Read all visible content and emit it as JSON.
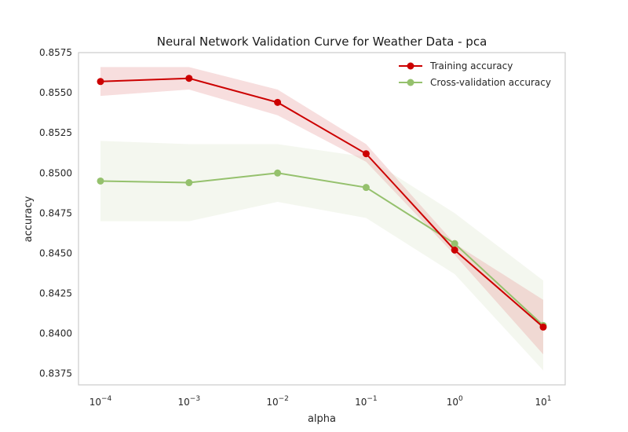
{
  "chart_data": {
    "type": "line",
    "title": "Neural Network Validation Curve for Weather Data - pca",
    "xlabel": "alpha",
    "ylabel": "accuracy",
    "x_scale": "log",
    "x": [
      0.0001,
      0.001,
      0.01,
      0.1,
      1,
      10
    ],
    "x_tick_labels": [
      {
        "base": "10",
        "exp": "−4"
      },
      {
        "base": "10",
        "exp": "−3"
      },
      {
        "base": "10",
        "exp": "−2"
      },
      {
        "base": "10",
        "exp": "−1"
      },
      {
        "base": "10",
        "exp": "0"
      },
      {
        "base": "10",
        "exp": "1"
      }
    ],
    "ylim": [
      0.8368,
      0.8575
    ],
    "y_ticks": [
      "0.8375",
      "0.8400",
      "0.8425",
      "0.8450",
      "0.8475",
      "0.8500",
      "0.8525",
      "0.8550",
      "0.8575"
    ],
    "grid": false,
    "legend_position": "top-right",
    "series": [
      {
        "name": "Training accuracy",
        "color": "#cc0000",
        "band_color": "#e8a0a0",
        "values": [
          0.8557,
          0.8559,
          0.8544,
          0.8512,
          0.8452,
          0.8404
        ],
        "band_lower": [
          0.8548,
          0.8552,
          0.8536,
          0.8507,
          0.8449,
          0.8387
        ],
        "band_upper": [
          0.8566,
          0.8566,
          0.8552,
          0.8518,
          0.8456,
          0.8421
        ]
      },
      {
        "name": "Cross-validation accuracy",
        "color": "#95c16d",
        "band_color": "#dfe9d2",
        "values": [
          0.8495,
          0.8494,
          0.85,
          0.8491,
          0.8456,
          0.8405
        ],
        "band_lower": [
          0.847,
          0.847,
          0.8482,
          0.8472,
          0.8437,
          0.8377
        ],
        "band_upper": [
          0.852,
          0.8518,
          0.8518,
          0.851,
          0.8475,
          0.8433
        ]
      }
    ]
  }
}
